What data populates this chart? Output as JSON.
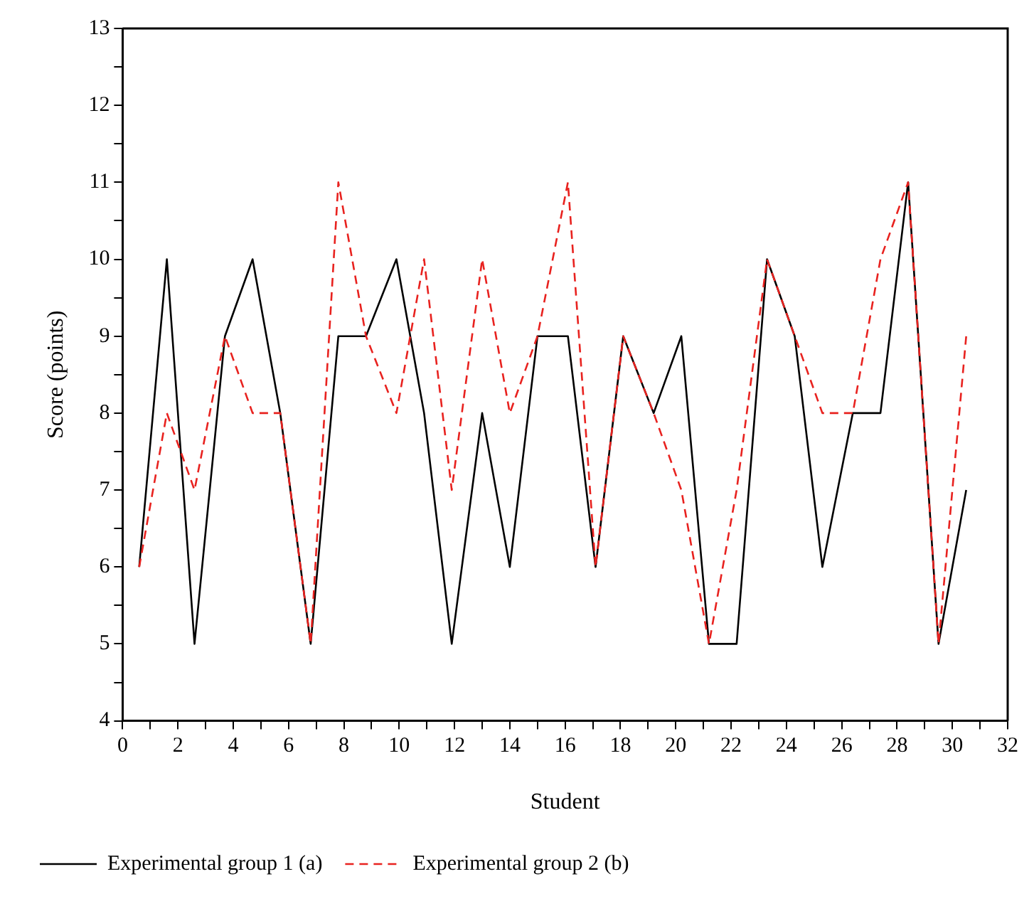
{
  "chart_data": {
    "type": "line",
    "xlabel": "Student",
    "ylabel": "Score (points)",
    "x": [
      0.6,
      1.6,
      2.6,
      3.7,
      4.7,
      5.7,
      6.8,
      7.8,
      8.8,
      9.9,
      10.9,
      11.9,
      13.0,
      14.0,
      15.0,
      16.1,
      17.1,
      18.1,
      19.2,
      20.2,
      21.2,
      22.2,
      23.3,
      24.3,
      25.3,
      26.4,
      27.4,
      28.4,
      29.5,
      30.5
    ],
    "series": [
      {
        "name": "Experimental group 1 (a)",
        "color": "#000000",
        "line_style": "solid",
        "values": [
          6,
          10,
          5,
          9,
          10,
          8,
          5,
          9,
          9,
          10,
          8,
          5,
          8,
          6,
          9,
          9,
          6,
          9,
          8,
          9,
          5,
          5,
          10,
          9,
          6,
          8,
          8,
          11,
          5,
          7
        ]
      },
      {
        "name": "Experimental group 2 (b)",
        "color": "#e8221f",
        "line_style": "dashed",
        "values": [
          6,
          8,
          7,
          9,
          8,
          8,
          5,
          11,
          9,
          8,
          10,
          7,
          10,
          8,
          9,
          11,
          6,
          9,
          8,
          7,
          5,
          7,
          10,
          9,
          8,
          8,
          10,
          11,
          5,
          9
        ]
      }
    ],
    "xlim": [
      0,
      32
    ],
    "xticks": [
      0,
      {
        "value": 1,
        "label": null
      },
      2,
      {
        "value": 3,
        "label": null
      },
      4,
      {
        "value": 5,
        "label": null
      },
      6,
      {
        "value": 7,
        "label": null
      },
      8,
      {
        "value": 9,
        "label": null
      },
      10,
      {
        "value": 11,
        "label": null
      },
      12,
      {
        "value": 13,
        "label": null
      },
      14,
      {
        "value": 15,
        "label": null
      },
      16,
      {
        "value": 17,
        "label": null
      },
      18,
      {
        "value": 19,
        "label": null
      },
      20,
      {
        "value": 21,
        "label": null
      },
      22,
      {
        "value": 23,
        "label": null
      },
      24,
      {
        "value": 25,
        "label": null
      },
      26,
      {
        "value": 27,
        "label": null
      },
      28,
      {
        "value": 29,
        "label": null
      },
      30,
      {
        "value": 31,
        "label": null
      },
      32
    ],
    "ylim": [
      4,
      13
    ],
    "yticks": [
      4,
      {
        "value": 4.5,
        "label": null
      },
      5,
      {
        "value": 5.5,
        "label": null
      },
      6,
      {
        "value": 6.5,
        "label": null
      },
      7,
      {
        "value": 7.5,
        "label": null
      },
      8,
      {
        "value": 8.5,
        "label": null
      },
      9,
      {
        "value": 9.5,
        "label": null
      },
      10,
      {
        "value": 10.5,
        "label": null
      },
      11,
      {
        "value": 11.5,
        "label": null
      },
      12,
      {
        "value": 12.5,
        "label": null
      },
      13
    ],
    "grid": false,
    "legend": "bottom left",
    "marker": "none"
  }
}
